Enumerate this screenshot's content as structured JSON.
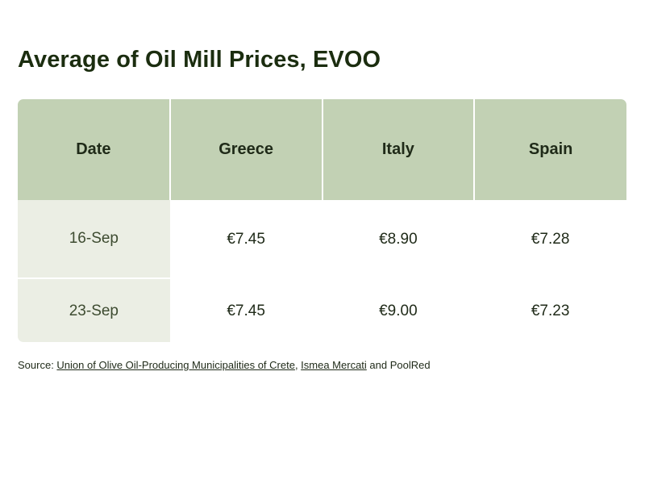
{
  "chart_data": {
    "type": "table",
    "title": "Average of Oil Mill Prices, EVOO",
    "columns": [
      "Date",
      "Greece",
      "Italy",
      "Spain"
    ],
    "rows": [
      [
        "16-Sep",
        "€7.45",
        "€8.90",
        "€7.28"
      ],
      [
        "23-Sep",
        "€7.45",
        "€9.00",
        "€7.23"
      ]
    ]
  },
  "source": {
    "prefix": "Source: ",
    "link1": "Union of Olive Oil-Producing Municipalities of Crete",
    "sep": ", ",
    "link2": "Ismea Mercati",
    "suffix": " and PoolRed"
  },
  "colors": {
    "header_bg": "#c2d1b4",
    "date_col_bg": "#ebeee4",
    "title": "#1b2d0f"
  }
}
